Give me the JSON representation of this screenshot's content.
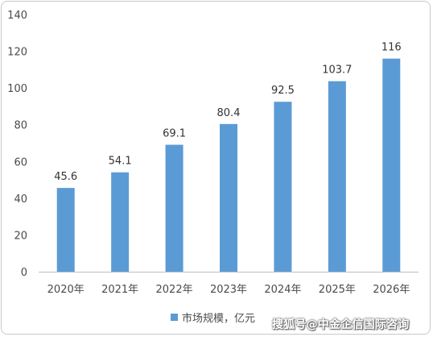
{
  "chart_data": {
    "type": "bar",
    "categories": [
      "2020年",
      "2021年",
      "2022年",
      "2023年",
      "2024年",
      "2025年",
      "2026年"
    ],
    "series": [
      {
        "name": "市场规模，亿元",
        "values": [
          45.6,
          54.1,
          69.1,
          80.4,
          92.5,
          103.7,
          116
        ],
        "labels": [
          "45.6",
          "54.1",
          "69.1",
          "80.4",
          "92.5",
          "103.7",
          "116"
        ]
      }
    ],
    "ylim": [
      0,
      140
    ],
    "yticks": [
      "0",
      "20",
      "40",
      "60",
      "80",
      "100",
      "120",
      "140"
    ],
    "legend_position": "bottom",
    "grid": false,
    "colors": {
      "bar": "#5b9bd5",
      "axis": "#bfbfbf"
    }
  },
  "legend": {
    "label": "市场规模，亿元"
  },
  "watermark": {
    "text": "搜狐号@中金企信国际咨询"
  }
}
